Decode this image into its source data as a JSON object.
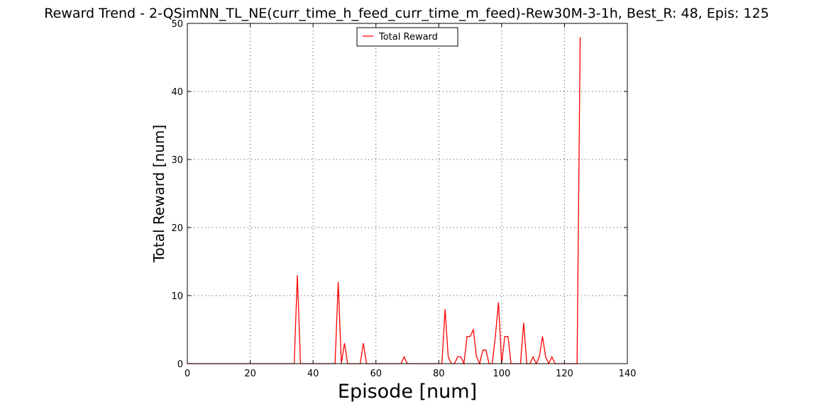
{
  "chart_data": {
    "type": "line",
    "title": "Reward Trend - 2-QSimNN_TL_NE(curr_time_h_feed_curr_time_m_feed)-Rew30M-3-1h, Best_R: 48, Epis: 125",
    "xlabel": "Episode [num]",
    "ylabel": "Total Reward [num]",
    "xlim": [
      0,
      140
    ],
    "ylim": [
      0,
      50
    ],
    "xticks": [
      0,
      20,
      40,
      60,
      80,
      100,
      120,
      140
    ],
    "yticks": [
      0,
      10,
      20,
      30,
      40,
      50
    ],
    "grid": true,
    "legend_position": "top-center",
    "series": [
      {
        "name": "Total Reward",
        "color": "#ff0000",
        "x": [
          0,
          1,
          2,
          3,
          4,
          5,
          6,
          7,
          8,
          9,
          10,
          11,
          12,
          13,
          14,
          15,
          16,
          17,
          18,
          19,
          20,
          21,
          22,
          23,
          24,
          25,
          26,
          27,
          28,
          29,
          30,
          31,
          32,
          33,
          34,
          35,
          36,
          37,
          38,
          39,
          40,
          41,
          42,
          43,
          44,
          45,
          46,
          47,
          48,
          49,
          50,
          51,
          52,
          53,
          54,
          55,
          56,
          57,
          58,
          59,
          60,
          61,
          62,
          63,
          64,
          65,
          66,
          67,
          68,
          69,
          70,
          71,
          72,
          73,
          74,
          75,
          76,
          77,
          78,
          79,
          80,
          81,
          82,
          83,
          84,
          85,
          86,
          87,
          88,
          89,
          90,
          91,
          92,
          93,
          94,
          95,
          96,
          97,
          98,
          99,
          100,
          101,
          102,
          103,
          104,
          105,
          106,
          107,
          108,
          109,
          110,
          111,
          112,
          113,
          114,
          115,
          116,
          117,
          118,
          119,
          120,
          121,
          122,
          123,
          124,
          125
        ],
        "y": [
          0,
          0,
          0,
          0,
          0,
          0,
          0,
          0,
          0,
          0,
          0,
          0,
          0,
          0,
          0,
          0,
          0,
          0,
          0,
          0,
          0,
          0,
          0,
          0,
          0,
          0,
          0,
          0,
          0,
          0,
          0,
          0,
          0,
          0,
          0,
          13,
          0,
          0,
          0,
          0,
          0,
          0,
          0,
          0,
          0,
          0,
          0,
          0,
          12,
          0,
          3,
          0,
          0,
          0,
          0,
          0,
          3,
          0,
          0,
          0,
          0,
          0,
          0,
          0,
          0,
          0,
          0,
          0,
          0,
          1,
          0,
          0,
          0,
          0,
          0,
          0,
          0,
          0,
          0,
          0,
          0,
          0,
          8,
          1,
          0,
          0,
          1,
          1,
          0,
          4,
          4,
          5,
          1,
          0,
          2,
          2,
          0,
          0,
          4,
          9,
          0,
          4,
          4,
          0,
          0,
          0,
          0,
          6,
          0,
          0,
          1,
          0,
          1,
          4,
          1,
          0,
          1,
          0,
          0,
          0,
          0,
          0,
          0,
          0,
          0,
          48
        ]
      }
    ]
  }
}
